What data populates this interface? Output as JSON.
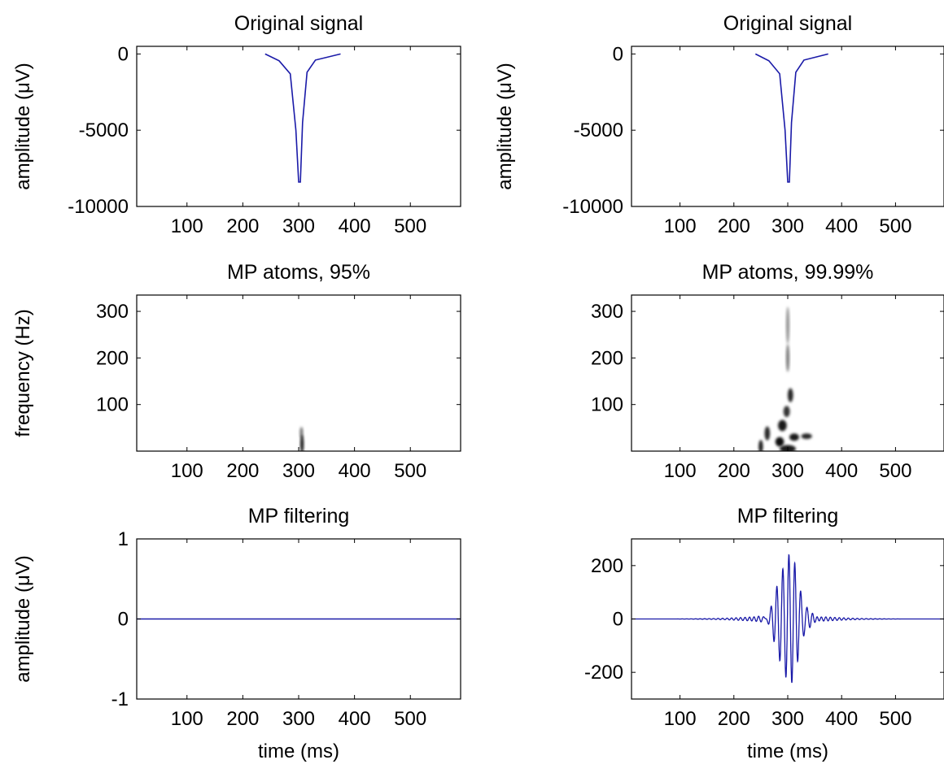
{
  "figure": {
    "panels": [
      {
        "id": "p11",
        "title": "Original signal",
        "ylabel": "amplitude (μV)",
        "xlabel": "",
        "type": "line",
        "xlim": [
          10,
          590
        ],
        "ylim": [
          -10000,
          500
        ],
        "xticks": [
          100,
          200,
          300,
          400,
          500
        ],
        "xticklabels": [
          "100",
          "200",
          "300",
          "400",
          "500"
        ],
        "yticks": [
          0,
          -5000,
          -10000
        ],
        "yticklabels": [
          "0",
          "-5000",
          "-10000"
        ],
        "color": "#1a1aa8"
      },
      {
        "id": "p12",
        "title": "Original signal",
        "ylabel": "amplitude (μV)",
        "xlabel": "",
        "type": "line",
        "xlim": [
          10,
          590
        ],
        "ylim": [
          -10000,
          500
        ],
        "xticks": [
          100,
          200,
          300,
          400,
          500
        ],
        "xticklabels": [
          "100",
          "200",
          "300",
          "400",
          "500"
        ],
        "yticks": [
          0,
          -5000,
          -10000
        ],
        "yticklabels": [
          "0",
          "-5000",
          "-10000"
        ],
        "color": "#1a1aa8"
      },
      {
        "id": "p21",
        "title": "MP atoms, 95%",
        "ylabel": "frequency (Hz)",
        "xlabel": "",
        "type": "heatmap",
        "xlim": [
          10,
          590
        ],
        "ylim": [
          0,
          335
        ],
        "xticks": [
          100,
          200,
          300,
          400,
          500
        ],
        "xticklabels": [
          "100",
          "200",
          "300",
          "400",
          "500"
        ],
        "yticks": [
          300,
          200,
          100
        ],
        "yticklabels": [
          "300",
          "200",
          "100"
        ],
        "color": "#000000"
      },
      {
        "id": "p22",
        "title": "MP atoms, 99.99%",
        "ylabel": "",
        "xlabel": "",
        "type": "heatmap",
        "xlim": [
          10,
          590
        ],
        "ylim": [
          0,
          335
        ],
        "xticks": [
          100,
          200,
          300,
          400,
          500
        ],
        "xticklabels": [
          "100",
          "200",
          "300",
          "400",
          "500"
        ],
        "yticks": [
          300,
          200,
          100
        ],
        "yticklabels": [
          "300",
          "200",
          "100"
        ],
        "color": "#000000"
      },
      {
        "id": "p31",
        "title": "MP filtering",
        "ylabel": "amplitude (μV)",
        "xlabel": "time (ms)",
        "type": "line",
        "xlim": [
          10,
          590
        ],
        "ylim": [
          -1,
          1
        ],
        "xticks": [
          100,
          200,
          300,
          400,
          500
        ],
        "xticklabels": [
          "100",
          "200",
          "300",
          "400",
          "500"
        ],
        "yticks": [
          1,
          0,
          -1
        ],
        "yticklabels": [
          "1",
          "0",
          "-1"
        ],
        "color": "#1a1aa8"
      },
      {
        "id": "p32",
        "title": "MP filtering",
        "ylabel": "",
        "xlabel": "time (ms)",
        "type": "line",
        "xlim": [
          10,
          590
        ],
        "ylim": [
          -300,
          300
        ],
        "xticks": [
          100,
          200,
          300,
          400,
          500
        ],
        "xticklabels": [
          "100",
          "200",
          "300",
          "400",
          "500"
        ],
        "yticks": [
          200,
          0,
          -200
        ],
        "yticklabels": [
          "200",
          "0",
          "-200"
        ],
        "color": "#1a1aa8"
      }
    ]
  },
  "chart_data": [
    {
      "type": "line",
      "title": "Original signal",
      "xlabel": "",
      "ylabel": "amplitude (μV)",
      "xlim": [
        10,
        590
      ],
      "ylim": [
        -10000,
        500
      ],
      "series": [
        {
          "x": [
            240,
            265,
            285,
            295,
            300,
            303,
            307,
            315,
            330,
            375
          ],
          "y": [
            0,
            -450,
            -1300,
            -5000,
            -8400,
            -8400,
            -4500,
            -1200,
            -400,
            0
          ]
        }
      ]
    },
    {
      "type": "line",
      "title": "Original signal",
      "xlabel": "",
      "ylabel": "amplitude (μV)",
      "xlim": [
        10,
        590
      ],
      "ylim": [
        -10000,
        500
      ],
      "series": [
        {
          "x": [
            240,
            265,
            285,
            295,
            300,
            303,
            307,
            315,
            330,
            375
          ],
          "y": [
            0,
            -450,
            -1300,
            -5000,
            -8400,
            -8400,
            -4500,
            -1200,
            -400,
            0
          ]
        }
      ]
    },
    {
      "type": "heatmap",
      "title": "MP atoms, 95%",
      "xlabel": "",
      "ylabel": "frequency (Hz)",
      "xlim": [
        10,
        590
      ],
      "ylim": [
        0,
        335
      ],
      "atoms": [
        {
          "t": 306,
          "f": 15,
          "dt": 3,
          "df": 20,
          "amp": 0.95
        },
        {
          "t": 305,
          "f": 40,
          "dt": 2,
          "df": 12,
          "amp": 0.55
        }
      ]
    },
    {
      "type": "heatmap",
      "title": "MP atoms, 99.99%",
      "xlabel": "",
      "ylabel": "",
      "xlim": [
        10,
        590
      ],
      "ylim": [
        0,
        335
      ],
      "atoms": [
        {
          "t": 300,
          "f": 270,
          "dt": 2,
          "df": 40,
          "amp": 0.45
        },
        {
          "t": 300,
          "f": 200,
          "dt": 3,
          "df": 30,
          "amp": 0.55
        },
        {
          "t": 305,
          "f": 120,
          "dt": 5,
          "df": 15,
          "amp": 0.85
        },
        {
          "t": 298,
          "f": 85,
          "dt": 6,
          "df": 12,
          "amp": 0.8
        },
        {
          "t": 290,
          "f": 55,
          "dt": 8,
          "df": 12,
          "amp": 0.9
        },
        {
          "t": 262,
          "f": 38,
          "dt": 5,
          "df": 15,
          "amp": 0.85
        },
        {
          "t": 250,
          "f": 10,
          "dt": 4,
          "df": 14,
          "amp": 0.9
        },
        {
          "t": 285,
          "f": 20,
          "dt": 8,
          "df": 10,
          "amp": 0.95
        },
        {
          "t": 312,
          "f": 30,
          "dt": 9,
          "df": 8,
          "amp": 0.9
        },
        {
          "t": 335,
          "f": 32,
          "dt": 10,
          "df": 6,
          "amp": 0.85
        },
        {
          "t": 300,
          "f": 5,
          "dt": 15,
          "df": 8,
          "amp": 0.9
        }
      ]
    },
    {
      "type": "line",
      "title": "MP filtering",
      "xlabel": "time (ms)",
      "ylabel": "amplitude (μV)",
      "xlim": [
        10,
        590
      ],
      "ylim": [
        -1,
        1
      ],
      "series": [
        {
          "x": [
            10,
            590
          ],
          "y": [
            0,
            0
          ]
        }
      ]
    },
    {
      "type": "line",
      "title": "MP filtering",
      "xlabel": "time (ms)",
      "ylabel": "",
      "xlim": [
        10,
        590
      ],
      "ylim": [
        -300,
        300
      ],
      "wave": {
        "center": 302,
        "peak": 240,
        "width": 18,
        "freq_hz": 90,
        "tail_amp": 12,
        "tail_width": 70,
        "tail_freq_hz": 120
      }
    }
  ]
}
